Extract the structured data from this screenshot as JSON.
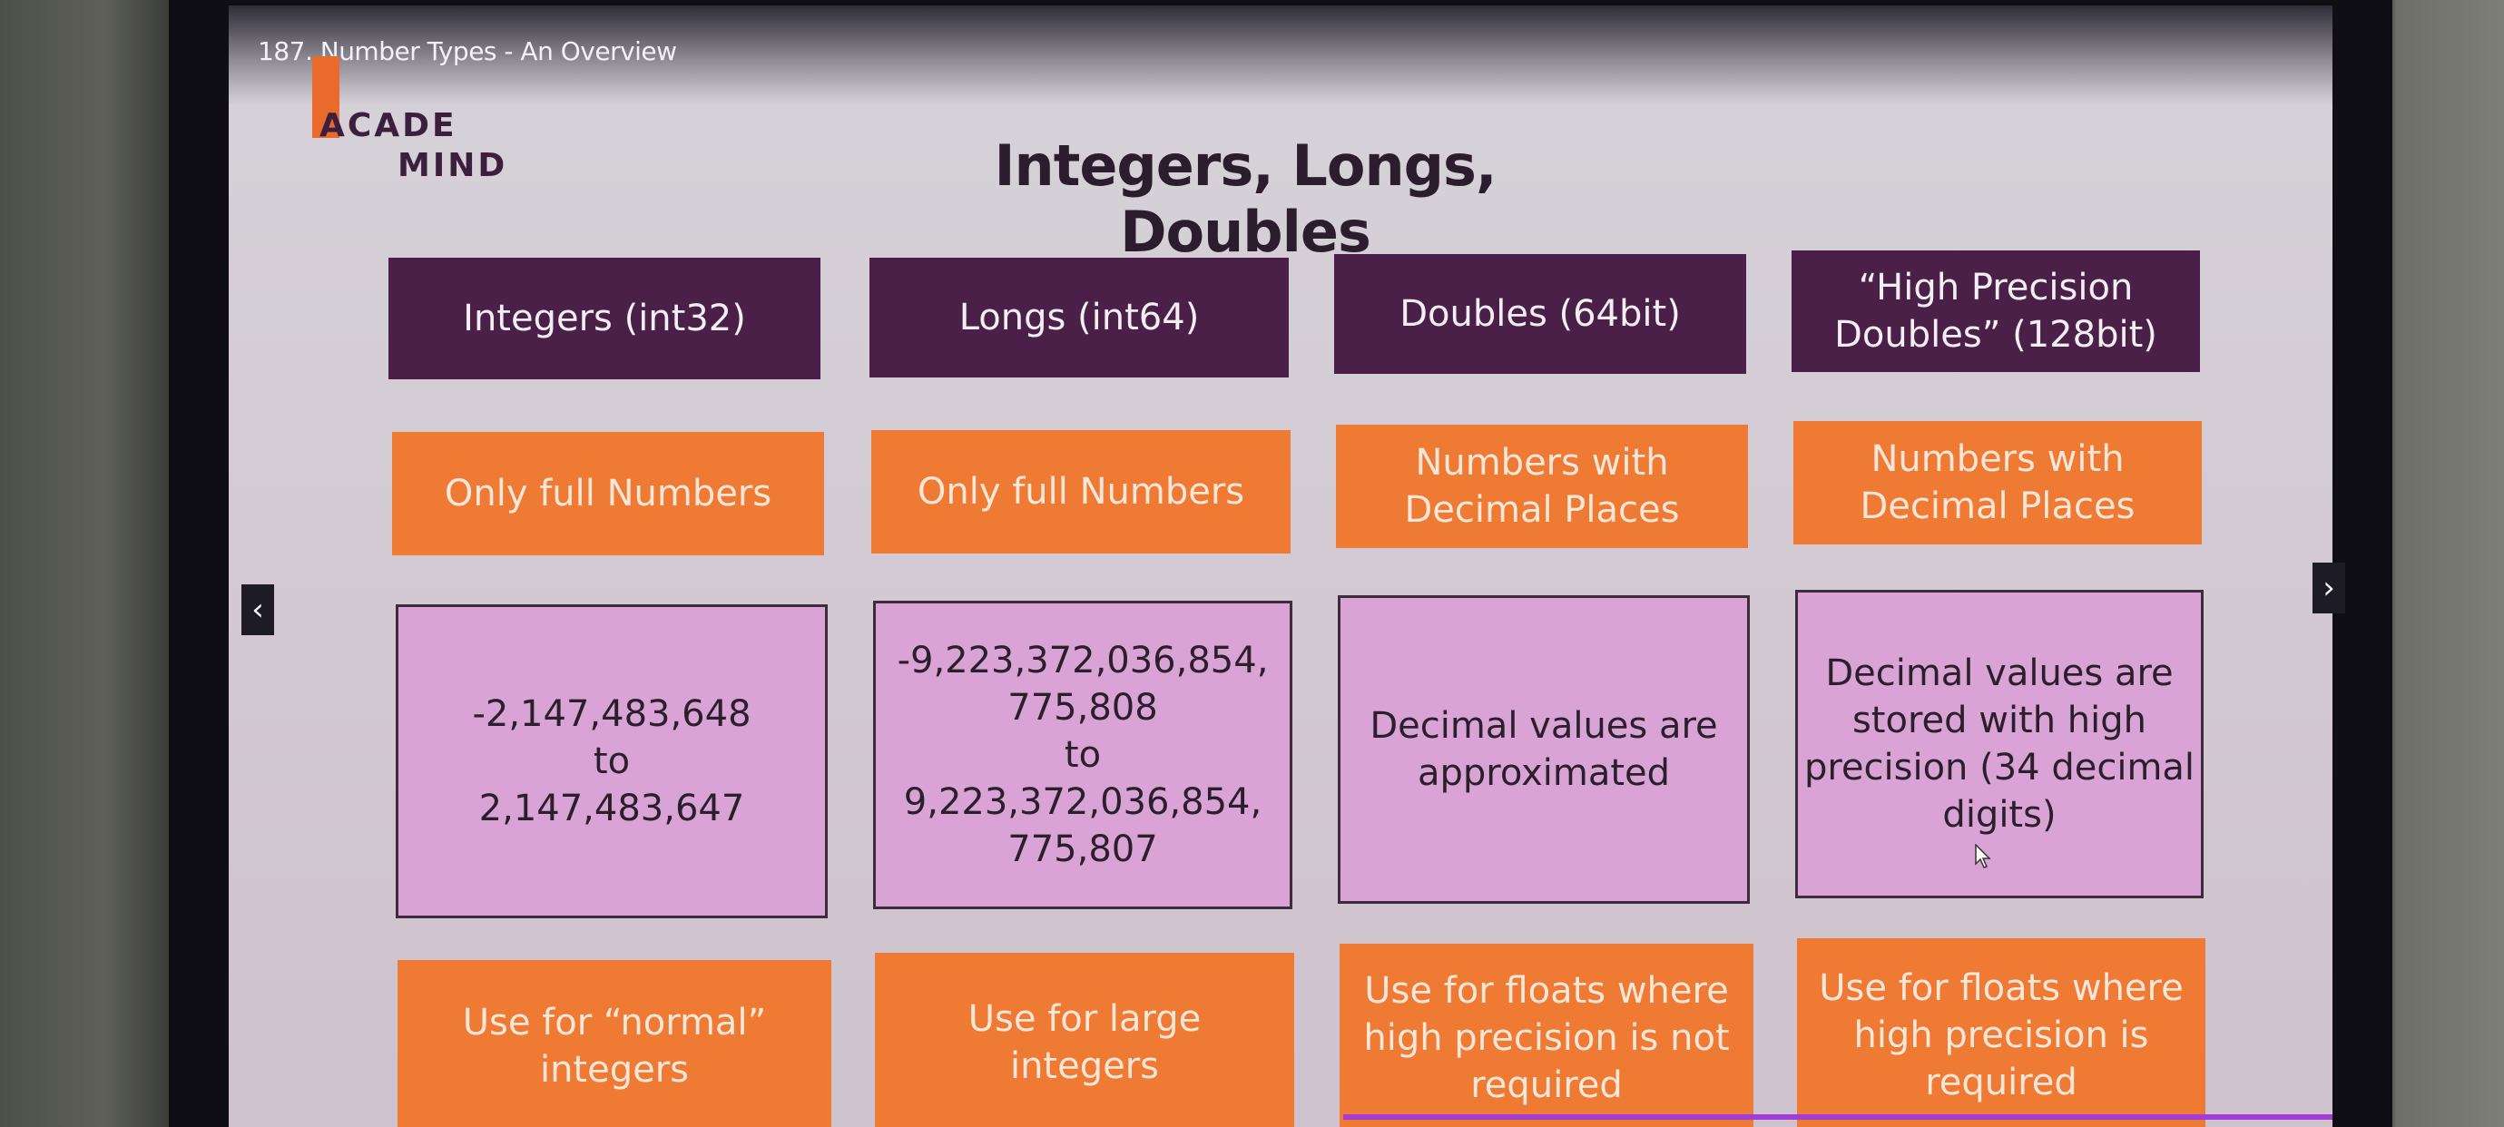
{
  "video": {
    "title": "187. Number Types - An Overview",
    "progress": 0.88
  },
  "logo": {
    "line1": "ACADE",
    "line2": "MIND",
    "color": "#e96a2a"
  },
  "slide": {
    "title": "Integers, Longs, Doubles",
    "columns": [
      {
        "heading": "Integers (int32)",
        "kind": "Only full Numbers",
        "range": "-2,147,483,648\nto\n2,147,483,647",
        "use": "Use for “normal”\nintegers"
      },
      {
        "heading": "Longs (int64)",
        "kind": "Only full Numbers",
        "range": "-9,223,372,036,854,\n775,808\nto\n9,223,372,036,854,\n775,807",
        "use": "Use for large\nintegers"
      },
      {
        "heading": "Doubles (64bit)",
        "kind": "Numbers with\nDecimal Places",
        "range": "Decimal values are\napproximated",
        "use": "Use for floats where\nhigh precision is not\nrequired"
      },
      {
        "heading": "“High Precision\nDoubles” (128bit)",
        "kind": "Numbers with\nDecimal Places",
        "range": "Decimal values are\nstored with high\nprecision (34 decimal\ndigits)",
        "use": "Use for floats where\nhigh precision is\nrequired"
      }
    ]
  },
  "nav": {
    "prev_icon": "chevron-left-icon",
    "prev_glyph": "‹",
    "next_icon": "chevron-right-icon",
    "next_glyph": "›"
  },
  "colors": {
    "heading_bg": "#4a1f48",
    "accent_orange": "#ef7a34",
    "range_bg": "#d9a3d6",
    "progress": "#a13dd6"
  }
}
